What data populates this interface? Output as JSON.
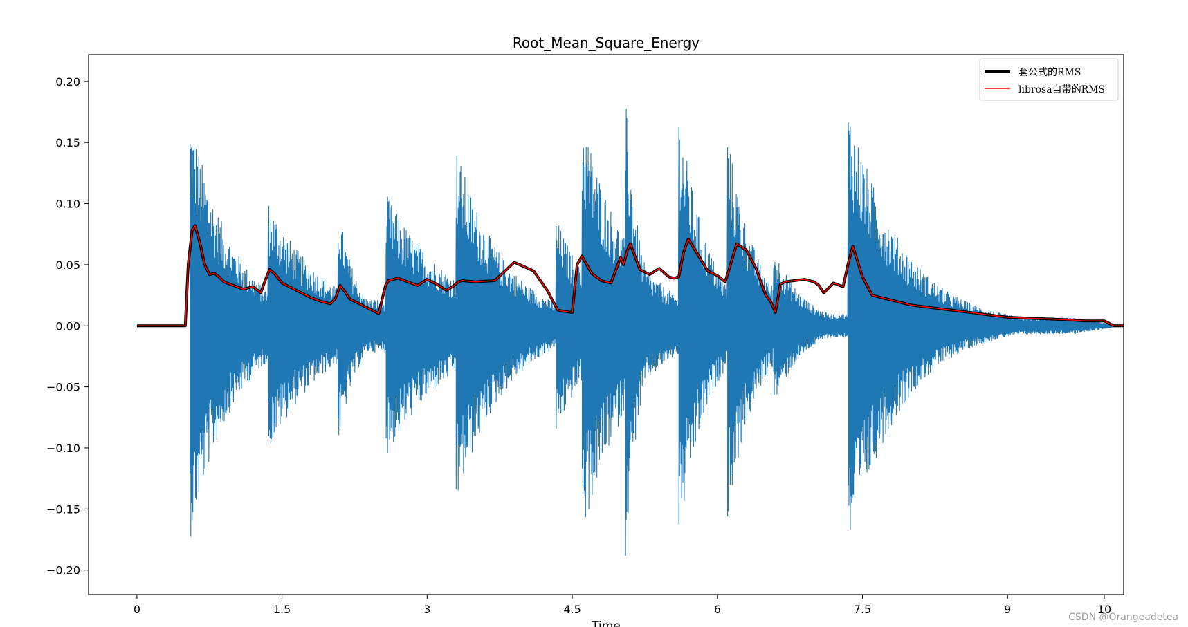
{
  "chart_data": {
    "type": "line",
    "title": "Root_Mean_Square_Energy",
    "xlabel": "Time",
    "ylabel": "",
    "xlim": [
      -0.5,
      10.2
    ],
    "ylim": [
      -0.22,
      0.222
    ],
    "x_ticks": [
      0,
      1.5,
      3,
      4.5,
      6,
      7.5,
      9,
      10
    ],
    "x_tick_labels": [
      "0",
      "1.5",
      "3",
      "4.5",
      "6",
      "7.5",
      "9",
      "10"
    ],
    "y_ticks": [
      0.2,
      0.15,
      0.1,
      0.05,
      0.0,
      -0.05,
      -0.1,
      -0.15,
      -0.2
    ],
    "y_tick_labels": [
      "0.20",
      "0.15",
      "0.10",
      "0.05",
      "0.00",
      "−0.05",
      "−0.10",
      "−0.15",
      "−0.20"
    ],
    "grid": false,
    "legend_position": "top-right",
    "waveform": {
      "color": "#1f77b4",
      "start": 0.55,
      "end": 10.2,
      "envelope_peaks": [
        {
          "t": 0.55,
          "amp": 0.185,
          "decay": 0.45
        },
        {
          "t": 1.35,
          "amp": 0.11,
          "decay": 0.6
        },
        {
          "t": 2.08,
          "amp": 0.105,
          "decay": 0.2
        },
        {
          "t": 2.57,
          "amp": 0.115,
          "decay": 0.7
        },
        {
          "t": 3.3,
          "amp": 0.155,
          "decay": 0.5
        },
        {
          "t": 4.33,
          "amp": 0.095,
          "decay": 0.4
        },
        {
          "t": 4.6,
          "amp": 0.185,
          "decay": 0.5
        },
        {
          "t": 5.05,
          "amp": 0.2,
          "decay": 0.15
        },
        {
          "t": 5.6,
          "amp": 0.19,
          "decay": 0.3
        },
        {
          "t": 6.1,
          "amp": 0.17,
          "decay": 0.3
        },
        {
          "t": 6.58,
          "amp": 0.07,
          "decay": 0.3
        },
        {
          "t": 7.35,
          "amp": 0.195,
          "decay": 0.55
        }
      ]
    },
    "series": [
      {
        "name": "套公式的RMS",
        "color": "#000000",
        "x": [
          0,
          0.5,
          0.53,
          0.57,
          0.6,
          0.65,
          0.7,
          0.75,
          0.8,
          0.85,
          0.9,
          1.0,
          1.1,
          1.2,
          1.28,
          1.32,
          1.37,
          1.42,
          1.5,
          1.6,
          1.7,
          1.8,
          1.9,
          2.0,
          2.05,
          2.1,
          2.15,
          2.2,
          2.3,
          2.4,
          2.5,
          2.53,
          2.57,
          2.6,
          2.7,
          2.8,
          2.9,
          3.0,
          3.05,
          3.1,
          3.2,
          3.28,
          3.32,
          3.36,
          3.5,
          3.7,
          3.9,
          4.1,
          4.25,
          4.3,
          4.35,
          4.4,
          4.5,
          4.55,
          4.6,
          4.65,
          4.7,
          4.8,
          4.9,
          5.0,
          5.03,
          5.07,
          5.1,
          5.2,
          5.3,
          5.4,
          5.5,
          5.55,
          5.6,
          5.65,
          5.7,
          5.8,
          5.9,
          6.0,
          6.05,
          6.08,
          6.12,
          6.2,
          6.3,
          6.4,
          6.5,
          6.55,
          6.6,
          6.65,
          6.7,
          6.8,
          6.9,
          7.0,
          7.05,
          7.1,
          7.2,
          7.3,
          7.35,
          7.4,
          7.5,
          7.6,
          7.8,
          8.0,
          8.2,
          8.4,
          8.6,
          8.8,
          9.0,
          9.3,
          9.6,
          9.8,
          9.9,
          10.0,
          10.1,
          10.2
        ],
        "y": [
          0.0,
          0.0,
          0.05,
          0.078,
          0.082,
          0.068,
          0.05,
          0.042,
          0.043,
          0.04,
          0.036,
          0.033,
          0.03,
          0.032,
          0.027,
          0.036,
          0.046,
          0.043,
          0.035,
          0.031,
          0.027,
          0.023,
          0.02,
          0.018,
          0.022,
          0.033,
          0.028,
          0.022,
          0.018,
          0.014,
          0.01,
          0.02,
          0.033,
          0.037,
          0.039,
          0.036,
          0.033,
          0.038,
          0.036,
          0.034,
          0.029,
          0.033,
          0.036,
          0.037,
          0.036,
          0.037,
          0.052,
          0.045,
          0.028,
          0.02,
          0.013,
          0.012,
          0.011,
          0.05,
          0.057,
          0.05,
          0.043,
          0.037,
          0.035,
          0.056,
          0.05,
          0.062,
          0.067,
          0.046,
          0.042,
          0.047,
          0.04,
          0.039,
          0.04,
          0.06,
          0.071,
          0.058,
          0.045,
          0.041,
          0.038,
          0.036,
          0.046,
          0.067,
          0.062,
          0.047,
          0.025,
          0.02,
          0.011,
          0.034,
          0.036,
          0.037,
          0.038,
          0.036,
          0.033,
          0.027,
          0.035,
          0.032,
          0.05,
          0.065,
          0.04,
          0.025,
          0.021,
          0.017,
          0.015,
          0.013,
          0.011,
          0.009,
          0.007,
          0.006,
          0.005,
          0.004,
          0.004,
          0.004,
          0.0,
          0.0
        ]
      },
      {
        "name": "librosa自带的RMS",
        "color": "#ff0000",
        "same_as_first": true
      }
    ]
  },
  "watermark": "CSDN @Orangeadetea"
}
